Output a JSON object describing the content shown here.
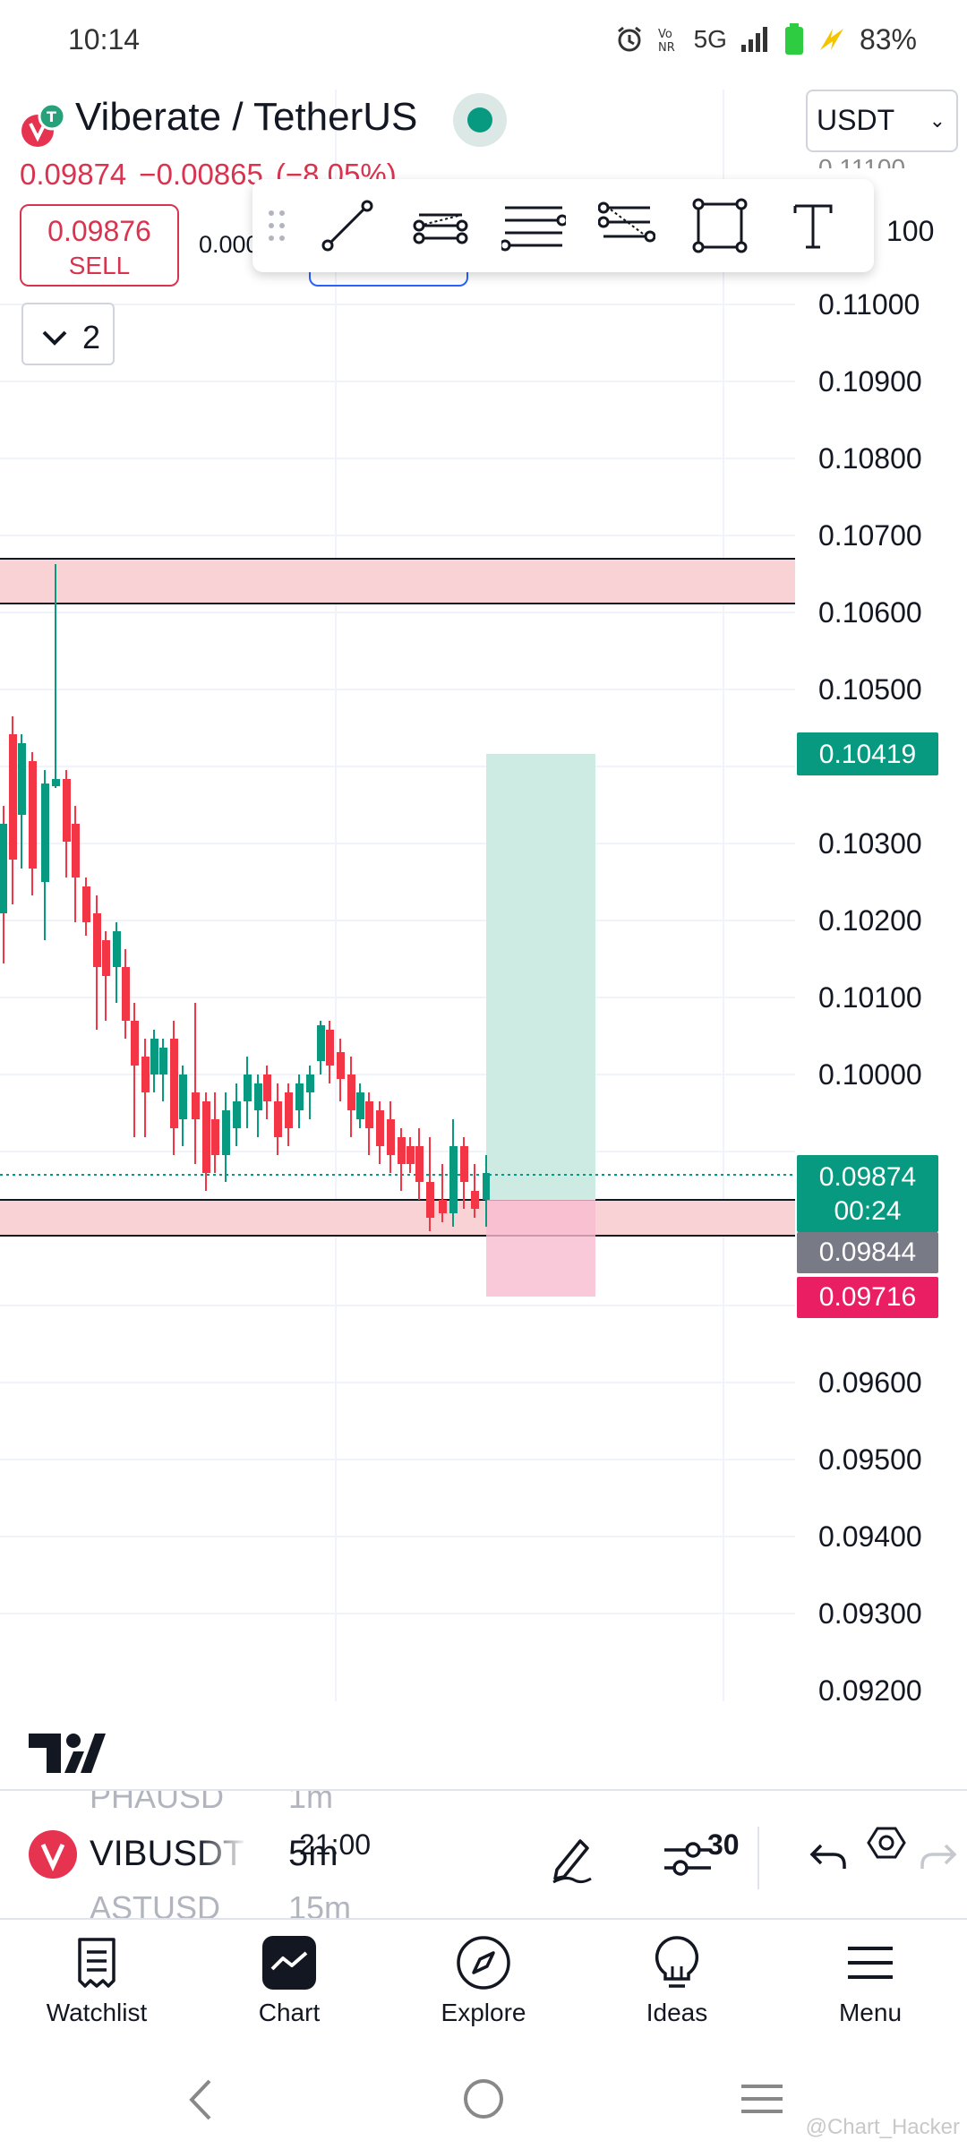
{
  "status_bar": {
    "time": "10:14",
    "network": "5G",
    "battery": "83%"
  },
  "header": {
    "symbol_title": "Viberate / TetherUS",
    "currency": "USDT",
    "last_price": "0.09874",
    "change": "−0.00865",
    "change_pct": "(−8.05%)",
    "sell_price": "0.09876",
    "sell_label": "SELL",
    "spread": "0.000",
    "indicators_count": "2"
  },
  "drawing_tools": [
    "trend-line",
    "parallel-channel",
    "horizontal-lines",
    "fib-retracement",
    "rectangle",
    "text"
  ],
  "chart": {
    "price_levels": [
      "0.11000",
      "0.10900",
      "0.10800",
      "0.10700",
      "0.10600",
      "0.10500",
      "0.10300",
      "0.10200",
      "0.10100",
      "0.10000",
      "0.09600",
      "0.09500",
      "0.09400",
      "0.09300",
      "0.09200"
    ],
    "partial_top_label": "0.11100",
    "tags": {
      "target": "0.10419",
      "current": "0.09874",
      "countdown": "00:24",
      "entry": "0.09844",
      "stop": "0.09716"
    },
    "time_labels": {
      "t1": "21:00",
      "t2": "30"
    }
  },
  "symbol_bar": {
    "prev_symbol": "PHAUSD",
    "prev_tf": "1m",
    "symbol": "VIBUSDT",
    "timeframe": "5m",
    "next_symbol": "ASTUSD",
    "next_tf": "15m"
  },
  "bottom_nav": [
    {
      "label": "Watchlist"
    },
    {
      "label": "Chart"
    },
    {
      "label": "Explore"
    },
    {
      "label": "Ideas"
    },
    {
      "label": "Menu"
    }
  ],
  "watermark": "@Chart_Hacker",
  "colors": {
    "up": "#089981",
    "down": "#f23645",
    "stop": "#e91e63",
    "entry": "#787b86"
  }
}
